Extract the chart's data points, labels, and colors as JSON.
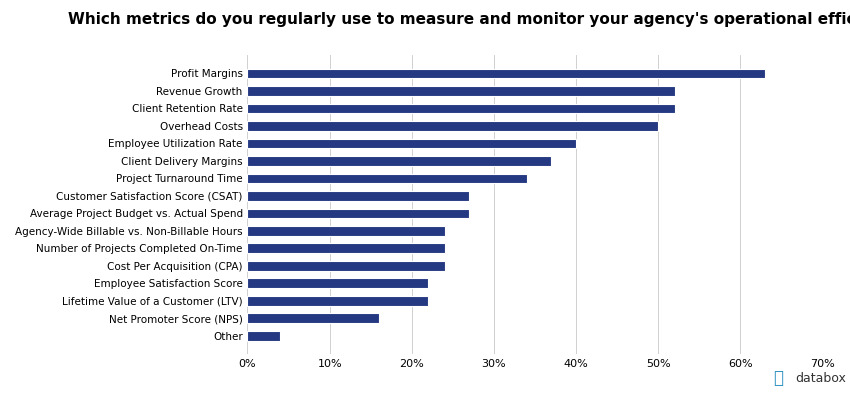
{
  "title": "Which metrics do you regularly use to measure and monitor your agency's operational efficiency?",
  "categories": [
    "Profit Margins",
    "Revenue Growth",
    "Client Retention Rate",
    "Overhead Costs",
    "Employee Utilization Rate",
    "Client Delivery Margins",
    "Project Turnaround Time",
    "Customer Satisfaction Score (CSAT)",
    "Average Project Budget vs. Actual Spend",
    "Agency-Wide Billable vs. Non-Billable Hours",
    "Number of Projects Completed On-Time",
    "Cost Per Acquisition (CPA)",
    "Employee Satisfaction Score",
    "Lifetime Value of a Customer (LTV)",
    "Net Promoter Score (NPS)",
    "Other"
  ],
  "values": [
    63,
    52,
    52,
    50,
    40,
    37,
    34,
    27,
    27,
    24,
    24,
    24,
    22,
    22,
    16,
    4
  ],
  "bar_color": "#253882",
  "background_color": "#ffffff",
  "title_fontsize": 11,
  "label_fontsize": 7.5,
  "tick_fontsize": 8,
  "xlim": [
    0,
    70
  ],
  "xticks": [
    0,
    10,
    20,
    30,
    40,
    50,
    60,
    70
  ],
  "xtick_labels": [
    "0%",
    "10%",
    "20%",
    "30%",
    "40%",
    "50%",
    "60%",
    "70%"
  ],
  "databox_text_color": "#333333",
  "databox_icon_color": "#2a8fc1"
}
